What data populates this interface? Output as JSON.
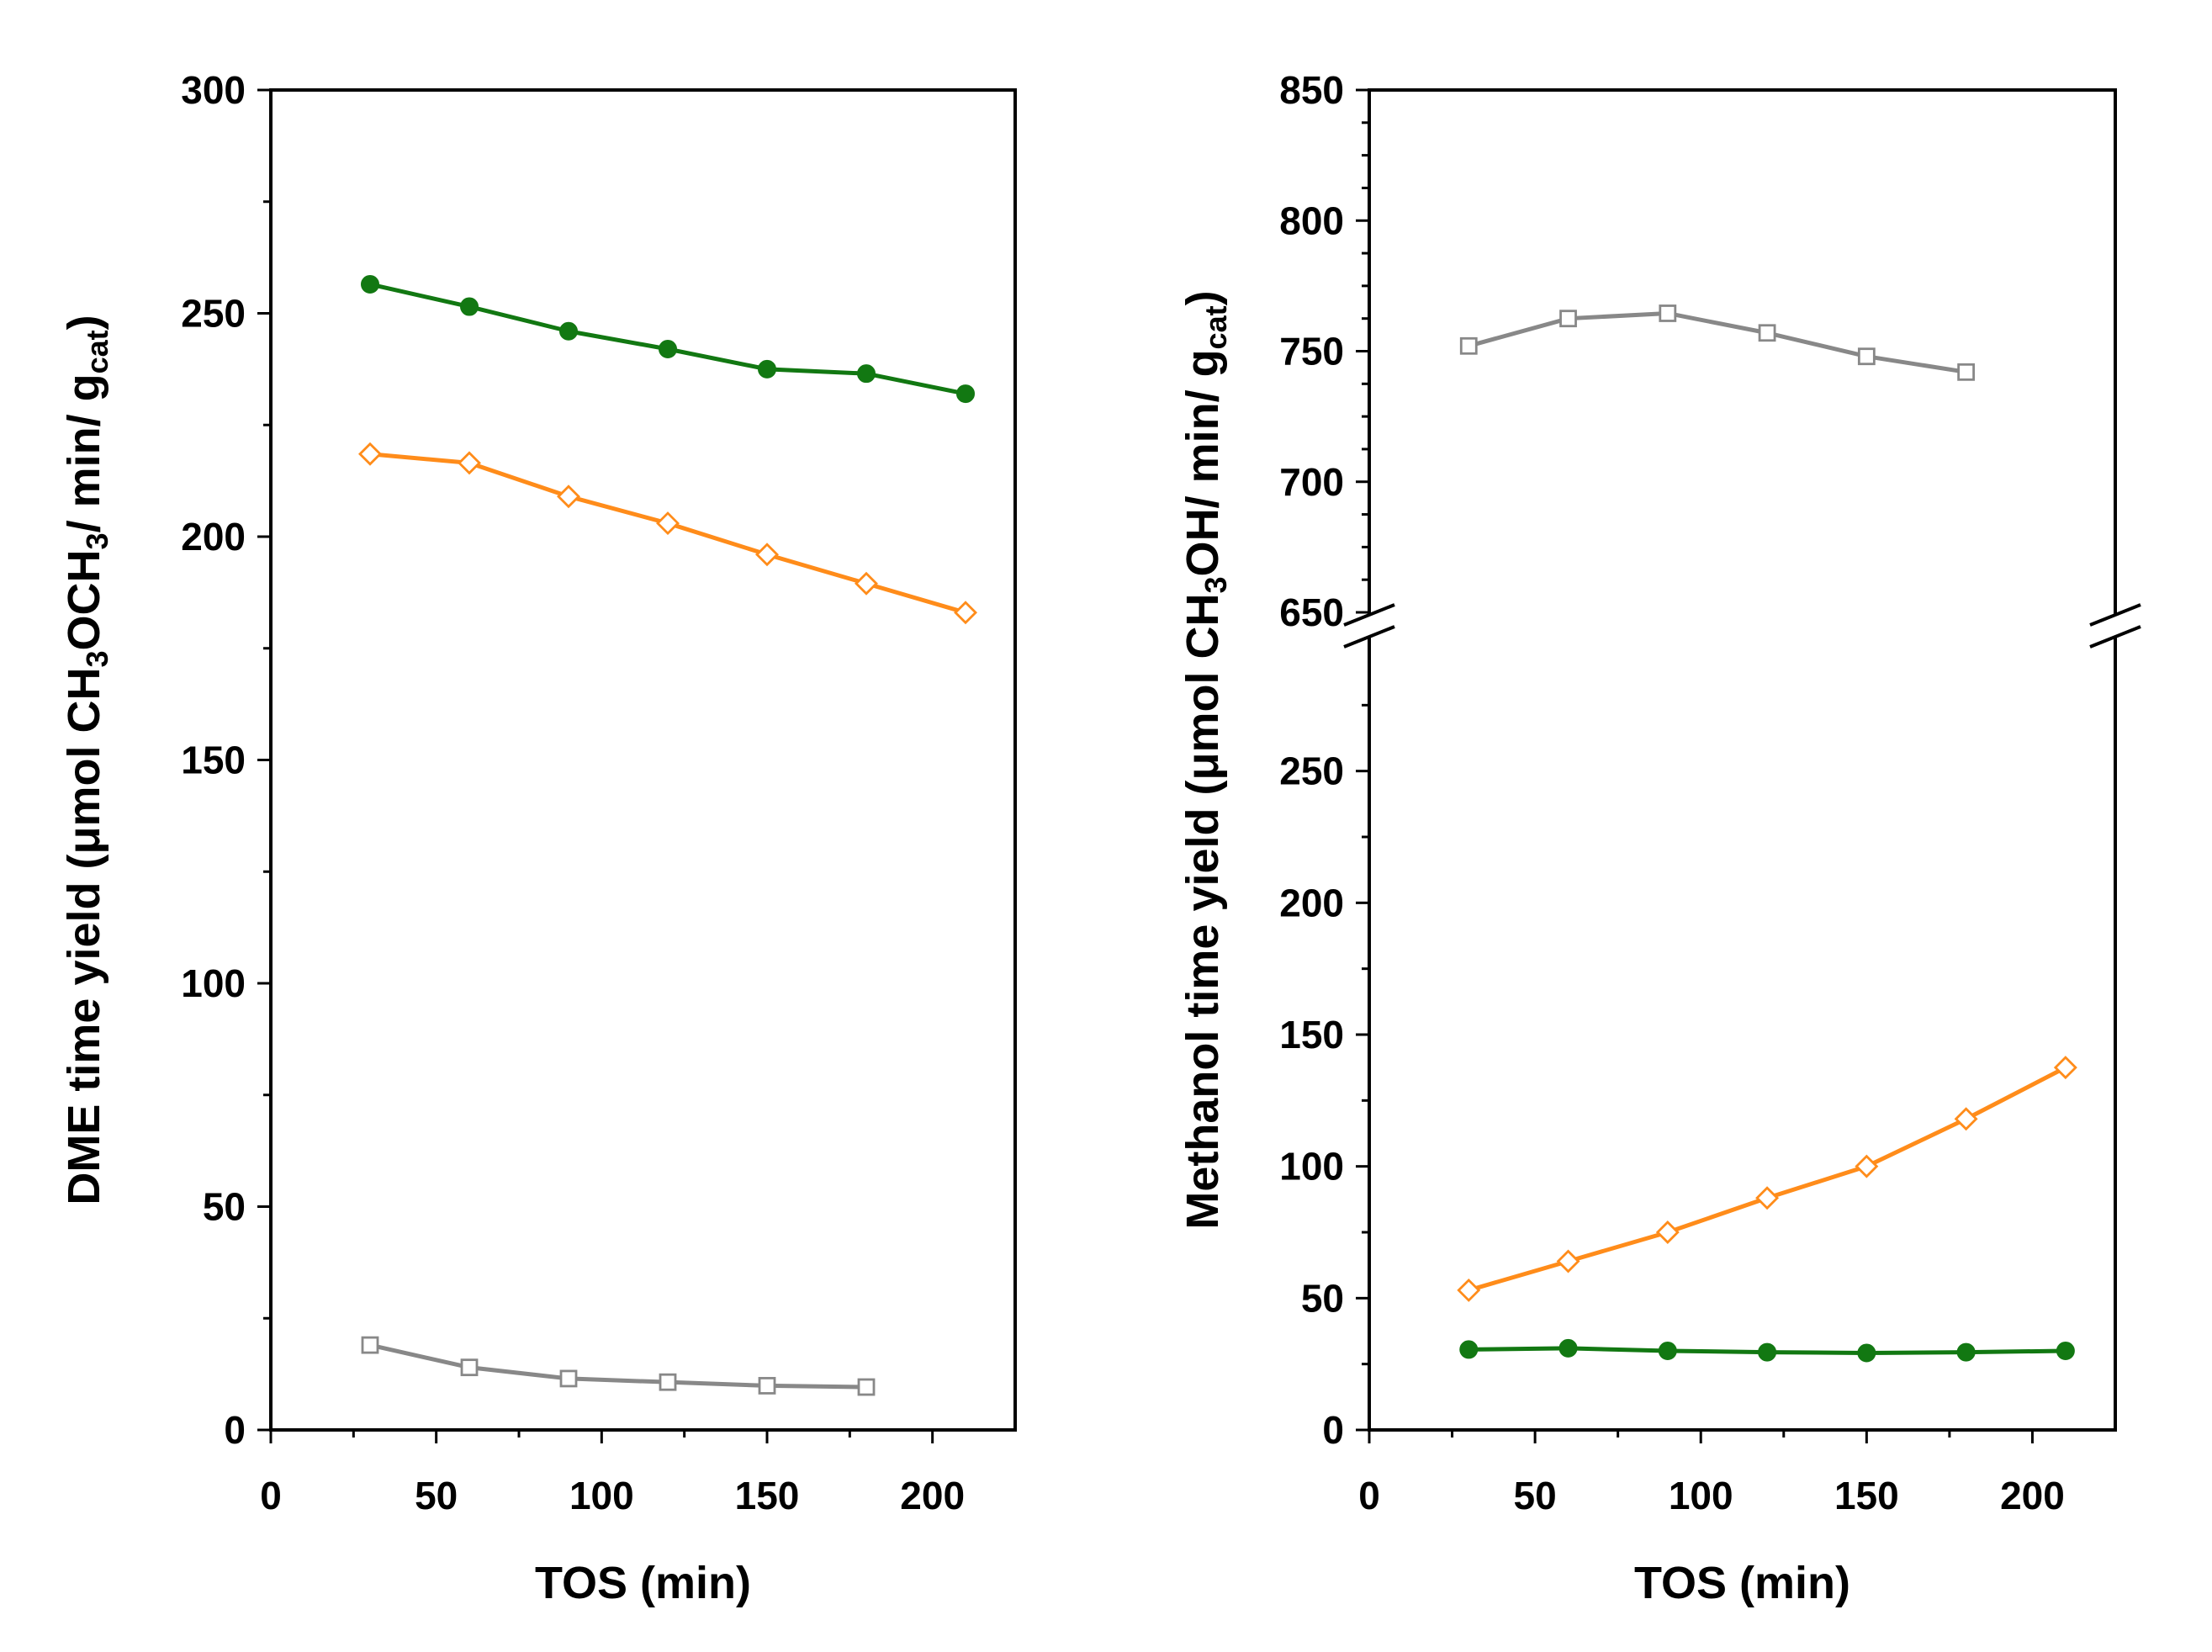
{
  "chart_data": [
    {
      "type": "line",
      "panel": "left",
      "xlabel": "TOS (min)",
      "ylabel": {
        "parts": [
          {
            "t": "DME time yield (",
            "s": "n"
          },
          {
            "t": "μ",
            "s": "n"
          },
          {
            "t": "mol CH",
            "s": "n"
          },
          {
            "t": "3",
            "s": "sub"
          },
          {
            "t": "OCH",
            "s": "n"
          },
          {
            "t": "3",
            "s": "sub"
          },
          {
            "t": "/ min/ g",
            "s": "n"
          },
          {
            "t": "cat",
            "s": "sub"
          },
          {
            "t": ")",
            "s": "n"
          }
        ]
      },
      "xlim": [
        0,
        225
      ],
      "ylim": [
        0,
        300
      ],
      "xticks": [
        0,
        50,
        100,
        150,
        200
      ],
      "yticks": [
        0,
        50,
        100,
        150,
        200,
        250,
        300
      ],
      "series": [
        {
          "name": "gray-open-square",
          "color": "#888888",
          "marker": "square",
          "filled": false,
          "x": [
            30,
            60,
            90,
            120,
            150,
            180
          ],
          "y": [
            19,
            14,
            11.5,
            10.7,
            9.9,
            9.6
          ]
        },
        {
          "name": "orange-open-diamond",
          "color": "#ff8c1a",
          "marker": "diamond",
          "filled": false,
          "x": [
            30,
            60,
            90,
            120,
            150,
            180,
            210
          ],
          "y": [
            218.5,
            216.5,
            209,
            203,
            196,
            189.5,
            183
          ]
        },
        {
          "name": "green-filled-circle",
          "color": "#127812",
          "marker": "circle",
          "filled": true,
          "x": [
            30,
            60,
            90,
            120,
            150,
            180,
            210
          ],
          "y": [
            256.5,
            251.5,
            246,
            242,
            237.5,
            236.5,
            232
          ]
        }
      ]
    },
    {
      "type": "line",
      "panel": "right",
      "xlabel": "TOS (min)",
      "ylabel": {
        "parts": [
          {
            "t": "Methanol time yield (",
            "s": "n"
          },
          {
            "t": "μ",
            "s": "n"
          },
          {
            "t": "mol CH",
            "s": "n"
          },
          {
            "t": "3",
            "s": "sub"
          },
          {
            "t": "OH/ min/ g",
            "s": "n"
          },
          {
            "t": "cat",
            "s": "sub"
          },
          {
            "t": ")",
            "s": "n"
          }
        ]
      },
      "xlim": [
        0,
        225
      ],
      "broken_y_axis": true,
      "ylim_lower": [
        0,
        300
      ],
      "ylim_upper": [
        650,
        850
      ],
      "xticks": [
        0,
        50,
        100,
        150,
        200
      ],
      "yticks_lower": [
        0,
        50,
        100,
        150,
        200,
        250
      ],
      "yticks_upper": [
        650,
        700,
        750,
        800,
        850
      ],
      "series": [
        {
          "name": "gray-open-square",
          "color": "#888888",
          "marker": "square",
          "filled": false,
          "x": [
            30,
            60,
            90,
            120,
            150,
            180
          ],
          "y": [
            752,
            762.5,
            764.5,
            757,
            748,
            742
          ]
        },
        {
          "name": "orange-open-diamond",
          "color": "#ff8c1a",
          "marker": "diamond",
          "filled": false,
          "x": [
            30,
            60,
            90,
            120,
            150,
            180,
            210
          ],
          "y": [
            53,
            64,
            75,
            88,
            100,
            118,
            137.5
          ]
        },
        {
          "name": "green-filled-circle",
          "color": "#127812",
          "marker": "circle",
          "filled": true,
          "x": [
            30,
            60,
            90,
            120,
            150,
            180,
            210
          ],
          "y": [
            30.5,
            31,
            30,
            29.5,
            29.2,
            29.5,
            30
          ]
        }
      ]
    }
  ]
}
